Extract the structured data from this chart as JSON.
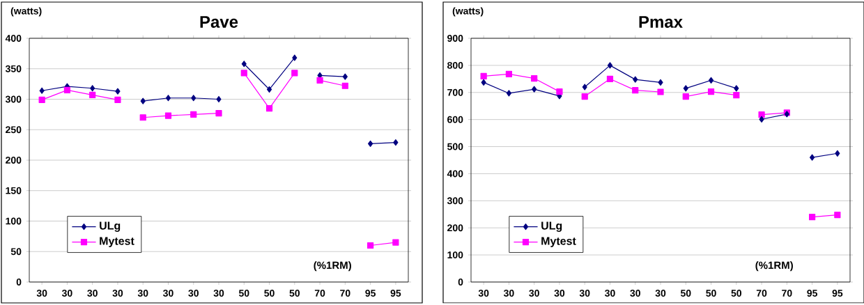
{
  "chart_data": [
    {
      "type": "line",
      "title": "Pave",
      "ylabel": "(watts)",
      "annotations": [
        "(%1RM)"
      ],
      "categories": [
        "30",
        "30",
        "30",
        "30",
        "30",
        "30",
        "30",
        "30",
        "50",
        "50",
        "50",
        "70",
        "70",
        "95",
        "95"
      ],
      "ylim": [
        0,
        400
      ],
      "yticks": [
        0,
        50,
        100,
        150,
        200,
        250,
        300,
        350,
        400
      ],
      "grid": "y",
      "legend": "bottom left",
      "series": [
        {
          "name": "ULg",
          "color": "#000080",
          "marker": "diamond",
          "values": [
            314,
            321,
            318,
            313,
            null,
            null,
            null,
            null,
            null,
            null,
            null,
            null,
            null,
            null,
            null
          ]
        },
        {
          "name": "Mytest",
          "color": "#ff00ff",
          "marker": "square",
          "values": [
            299,
            315,
            307,
            299,
            null,
            null,
            null,
            null,
            null,
            null,
            null,
            null,
            null,
            null,
            null
          ]
        },
        {
          "color": "#000080",
          "marker": "diamond",
          "values": [
            null,
            null,
            null,
            null,
            297,
            302,
            302,
            300,
            null,
            null,
            null,
            null,
            null,
            null,
            null
          ]
        },
        {
          "color": "#ff00ff",
          "marker": "square",
          "values": [
            null,
            null,
            null,
            null,
            270,
            273,
            275,
            277,
            null,
            null,
            null,
            null,
            null,
            null,
            null
          ]
        },
        {
          "color": "#000080",
          "marker": "diamond",
          "values": [
            null,
            null,
            null,
            null,
            null,
            null,
            null,
            null,
            358,
            316,
            368,
            null,
            null,
            null,
            null
          ]
        },
        {
          "color": "#ff00ff",
          "marker": "square",
          "values": [
            null,
            null,
            null,
            null,
            null,
            null,
            null,
            null,
            343,
            285,
            343,
            null,
            null,
            null,
            null
          ]
        },
        {
          "color": "#000080",
          "marker": "diamond",
          "values": [
            null,
            null,
            null,
            null,
            null,
            null,
            null,
            null,
            null,
            null,
            null,
            339,
            337,
            null,
            null
          ]
        },
        {
          "color": "#ff00ff",
          "marker": "square",
          "values": [
            null,
            null,
            null,
            null,
            null,
            null,
            null,
            null,
            null,
            null,
            null,
            331,
            322,
            null,
            null
          ]
        },
        {
          "color": "#000080",
          "marker": "diamond",
          "values": [
            null,
            null,
            null,
            null,
            null,
            null,
            null,
            null,
            null,
            null,
            null,
            null,
            null,
            227,
            229
          ]
        },
        {
          "color": "#ff00ff",
          "marker": "square",
          "values": [
            null,
            null,
            null,
            null,
            null,
            null,
            null,
            null,
            null,
            null,
            null,
            null,
            null,
            60,
            65
          ]
        }
      ]
    },
    {
      "type": "line",
      "title": "Pmax",
      "ylabel": "(watts)",
      "annotations": [
        "(%1RM)"
      ],
      "categories": [
        "30",
        "30",
        "30",
        "30",
        "30",
        "30",
        "30",
        "30",
        "50",
        "50",
        "50",
        "70",
        "70",
        "95",
        "95"
      ],
      "ylim": [
        0,
        900
      ],
      "yticks": [
        0,
        100,
        200,
        300,
        400,
        500,
        600,
        700,
        800,
        900
      ],
      "grid": "y",
      "legend": "bottom left",
      "series": [
        {
          "name": "ULg",
          "color": "#000080",
          "marker": "diamond",
          "values": [
            737,
            697,
            712,
            687,
            null,
            null,
            null,
            null,
            null,
            null,
            null,
            null,
            null,
            null,
            null
          ]
        },
        {
          "name": "Mytest",
          "color": "#ff00ff",
          "marker": "square",
          "values": [
            760,
            768,
            752,
            703,
            null,
            null,
            null,
            null,
            null,
            null,
            null,
            null,
            null,
            null,
            null
          ]
        },
        {
          "color": "#000080",
          "marker": "diamond",
          "values": [
            null,
            null,
            null,
            null,
            720,
            800,
            748,
            737,
            null,
            null,
            null,
            null,
            null,
            null,
            null
          ]
        },
        {
          "color": "#ff00ff",
          "marker": "square",
          "values": [
            null,
            null,
            null,
            null,
            685,
            750,
            708,
            702,
            null,
            null,
            null,
            null,
            null,
            null,
            null
          ]
        },
        {
          "color": "#000080",
          "marker": "diamond",
          "values": [
            null,
            null,
            null,
            null,
            null,
            null,
            null,
            null,
            715,
            745,
            715,
            null,
            null,
            null,
            null
          ]
        },
        {
          "color": "#ff00ff",
          "marker": "square",
          "values": [
            null,
            null,
            null,
            null,
            null,
            null,
            null,
            null,
            685,
            703,
            690,
            null,
            null,
            null,
            null
          ]
        },
        {
          "color": "#ff00ff",
          "marker": "square",
          "values": [
            null,
            null,
            null,
            null,
            null,
            null,
            null,
            null,
            null,
            null,
            null,
            618,
            625,
            null,
            null
          ]
        },
        {
          "color": "#000080",
          "marker": "diamond",
          "values": [
            null,
            null,
            null,
            null,
            null,
            null,
            null,
            null,
            null,
            null,
            null,
            601,
            620,
            null,
            null
          ]
        },
        {
          "color": "#000080",
          "marker": "diamond",
          "values": [
            null,
            null,
            null,
            null,
            null,
            null,
            null,
            null,
            null,
            null,
            null,
            null,
            null,
            460,
            475
          ]
        },
        {
          "color": "#ff00ff",
          "marker": "square",
          "values": [
            null,
            null,
            null,
            null,
            null,
            null,
            null,
            null,
            null,
            null,
            null,
            null,
            null,
            240,
            248
          ]
        }
      ]
    }
  ]
}
